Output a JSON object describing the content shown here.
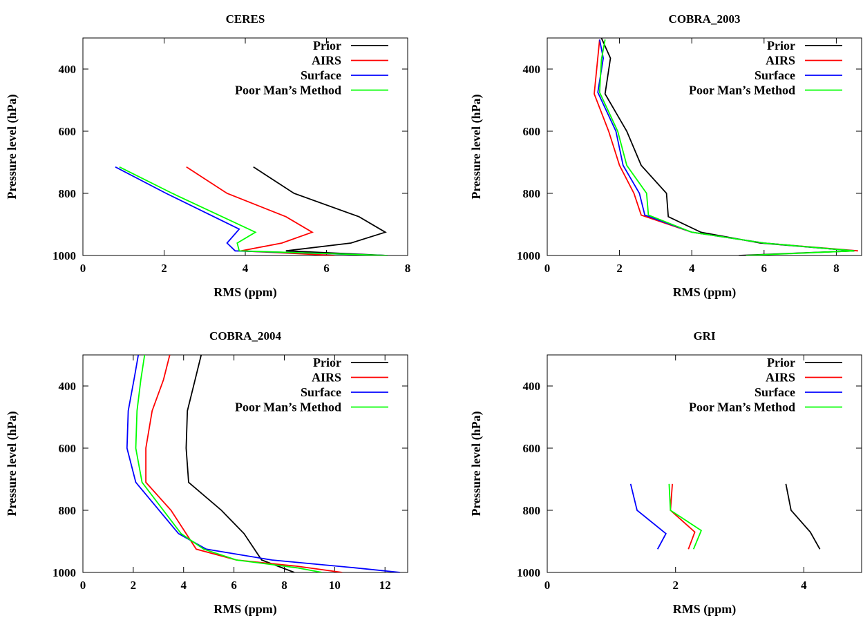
{
  "chart_data": [
    {
      "type": "line",
      "title": "CERES",
      "xlabel": "RMS (ppm)",
      "ylabel": "Pressure level (hPa)",
      "xlim": [
        0,
        8
      ],
      "ylim": [
        1000,
        300
      ],
      "xticks": [
        0,
        2,
        4,
        6,
        8
      ],
      "yticks": [
        400,
        600,
        800,
        1000
      ],
      "grid": false,
      "legend": "top-right",
      "series": [
        {
          "name": "Prior",
          "color": "#000000",
          "points": [
            [
              4.2,
              715
            ],
            [
              5.2,
              800
            ],
            [
              6.8,
              875
            ],
            [
              7.45,
              925
            ],
            [
              6.6,
              960
            ],
            [
              5.0,
              985
            ],
            [
              7.5,
              1000
            ]
          ]
        },
        {
          "name": "AIRS",
          "color": "#ff0000",
          "points": [
            [
              2.55,
              715
            ],
            [
              3.55,
              800
            ],
            [
              5.0,
              875
            ],
            [
              5.65,
              925
            ],
            [
              4.9,
              960
            ],
            [
              3.9,
              985
            ],
            [
              6.2,
              1000
            ]
          ]
        },
        {
          "name": "Surface",
          "color": "#0000ff",
          "points": [
            [
              0.8,
              715
            ],
            [
              2.05,
              800
            ],
            [
              3.85,
              915
            ],
            [
              3.55,
              960
            ],
            [
              3.75,
              985
            ],
            [
              7.5,
              1000
            ]
          ]
        },
        {
          "name": "Poor Man’s Method",
          "color": "#00ff00",
          "points": [
            [
              0.9,
              715
            ],
            [
              2.2,
              800
            ],
            [
              4.25,
              925
            ],
            [
              3.8,
              960
            ],
            [
              3.85,
              985
            ],
            [
              7.5,
              1000
            ]
          ]
        }
      ]
    },
    {
      "type": "line",
      "title": "COBRA_2003",
      "xlabel": "RMS (ppm)",
      "ylabel": "Pressure level (hPa)",
      "xlim": [
        0,
        8.7
      ],
      "ylim": [
        1000,
        300
      ],
      "xticks": [
        0,
        2,
        4,
        6,
        8
      ],
      "yticks": [
        400,
        600,
        800,
        1000
      ],
      "grid": false,
      "legend": "top-right",
      "series": [
        {
          "name": "Prior",
          "color": "#000000",
          "points": [
            [
              1.5,
              300
            ],
            [
              1.75,
              365
            ],
            [
              1.6,
              480
            ],
            [
              2.2,
              600
            ],
            [
              2.6,
              710
            ],
            [
              3.3,
              800
            ],
            [
              3.35,
              875
            ],
            [
              4.25,
              925
            ],
            [
              5.9,
              960
            ],
            [
              8.5,
              985
            ],
            [
              5.3,
              1000
            ]
          ]
        },
        {
          "name": "AIRS",
          "color": "#ff0000",
          "points": [
            [
              1.45,
              305
            ],
            [
              1.3,
              480
            ],
            [
              1.7,
              600
            ],
            [
              2.0,
              710
            ],
            [
              2.4,
              800
            ],
            [
              2.6,
              870
            ],
            [
              4.0,
              925
            ],
            [
              6.0,
              960
            ],
            [
              8.6,
              985
            ]
          ]
        },
        {
          "name": "Surface",
          "color": "#0000ff",
          "points": [
            [
              1.45,
              305
            ],
            [
              1.55,
              365
            ],
            [
              1.4,
              475
            ],
            [
              1.9,
              600
            ],
            [
              2.1,
              710
            ],
            [
              2.55,
              800
            ],
            [
              2.7,
              870
            ],
            [
              4.0,
              925
            ],
            [
              6.0,
              960
            ],
            [
              8.5,
              985
            ]
          ]
        },
        {
          "name": "Poor Man’s Method",
          "color": "#00ff00",
          "points": [
            [
              1.6,
              305
            ],
            [
              1.5,
              370
            ],
            [
              1.45,
              475
            ],
            [
              1.95,
              600
            ],
            [
              2.2,
              710
            ],
            [
              2.75,
              800
            ],
            [
              2.8,
              870
            ],
            [
              4.0,
              925
            ],
            [
              6.0,
              960
            ],
            [
              8.5,
              985
            ],
            [
              5.5,
              1000
            ]
          ]
        }
      ]
    },
    {
      "type": "line",
      "title": "COBRA_2004",
      "xlabel": "RMS (ppm)",
      "ylabel": "Pressure level (hPa)",
      "xlim": [
        0,
        12.9
      ],
      "ylim": [
        1000,
        300
      ],
      "xticks": [
        0,
        2,
        4,
        6,
        8,
        10,
        12
      ],
      "yticks": [
        400,
        600,
        800,
        1000
      ],
      "grid": false,
      "legend": "top-right",
      "series": [
        {
          "name": "Prior",
          "color": "#000000",
          "points": [
            [
              4.7,
              300
            ],
            [
              4.5,
              365
            ],
            [
              4.15,
              480
            ],
            [
              4.1,
              600
            ],
            [
              4.2,
              710
            ],
            [
              5.5,
              800
            ],
            [
              6.4,
              875
            ],
            [
              7.1,
              960
            ],
            [
              8.4,
              1000
            ]
          ]
        },
        {
          "name": "AIRS",
          "color": "#ff0000",
          "points": [
            [
              3.45,
              300
            ],
            [
              3.2,
              380
            ],
            [
              2.75,
              480
            ],
            [
              2.5,
              600
            ],
            [
              2.5,
              710
            ],
            [
              3.5,
              800
            ],
            [
              4.5,
              925
            ],
            [
              6.1,
              960
            ],
            [
              8.5,
              980
            ],
            [
              10.3,
              1000
            ]
          ]
        },
        {
          "name": "Surface",
          "color": "#0000ff",
          "points": [
            [
              2.2,
              300
            ],
            [
              2.05,
              370
            ],
            [
              1.8,
              480
            ],
            [
              1.75,
              600
            ],
            [
              2.1,
              710
            ],
            [
              3.8,
              875
            ],
            [
              4.9,
              925
            ],
            [
              7.5,
              960
            ],
            [
              10.8,
              985
            ],
            [
              12.6,
              1000
            ]
          ]
        },
        {
          "name": "Poor Man’s Method",
          "color": "#00ff00",
          "points": [
            [
              2.45,
              300
            ],
            [
              2.3,
              380
            ],
            [
              2.15,
              480
            ],
            [
              2.1,
              600
            ],
            [
              2.35,
              710
            ],
            [
              3.9,
              875
            ],
            [
              4.8,
              925
            ],
            [
              6.1,
              960
            ],
            [
              8.5,
              985
            ],
            [
              9.5,
              1000
            ]
          ]
        }
      ]
    },
    {
      "type": "line",
      "title": "GRI",
      "xlabel": "RMS (ppm)",
      "ylabel": "Pressure level (hPa)",
      "xlim": [
        0,
        4.9
      ],
      "ylim": [
        1000,
        300
      ],
      "xticks": [
        0,
        2,
        4
      ],
      "yticks": [
        400,
        600,
        800,
        1000
      ],
      "grid": false,
      "legend": "top-right",
      "series": [
        {
          "name": "Prior",
          "color": "#000000",
          "points": [
            [
              3.72,
              715
            ],
            [
              3.8,
              800
            ],
            [
              4.1,
              870
            ],
            [
              4.25,
              925
            ]
          ]
        },
        {
          "name": "AIRS",
          "color": "#ff0000",
          "points": [
            [
              1.95,
              715
            ],
            [
              1.92,
              800
            ],
            [
              2.3,
              870
            ],
            [
              2.2,
              925
            ]
          ]
        },
        {
          "name": "Surface",
          "color": "#0000ff",
          "points": [
            [
              1.3,
              715
            ],
            [
              1.4,
              800
            ],
            [
              1.85,
              875
            ],
            [
              1.72,
              925
            ]
          ]
        },
        {
          "name": "Poor Man’s Method",
          "color": "#00ff00",
          "points": [
            [
              1.9,
              715
            ],
            [
              1.92,
              800
            ],
            [
              2.4,
              865
            ],
            [
              2.28,
              925
            ]
          ]
        }
      ]
    }
  ]
}
